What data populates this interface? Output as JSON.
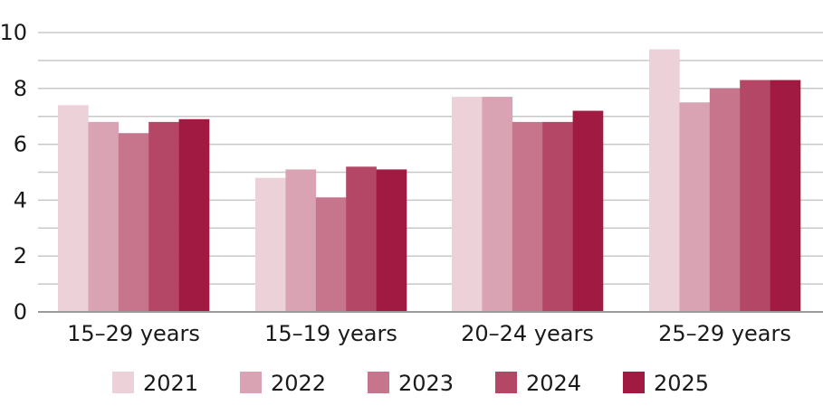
{
  "chart_data": {
    "type": "bar",
    "categories": [
      "15–29 years",
      "15–19 years",
      "20–24 years",
      "25–29 years"
    ],
    "series": [
      {
        "name": "2021",
        "color": "#edd1d9",
        "values": [
          7.4,
          4.8,
          7.7,
          9.4
        ]
      },
      {
        "name": "2022",
        "color": "#daa3b3",
        "values": [
          6.8,
          5.1,
          7.7,
          7.5
        ]
      },
      {
        "name": "2023",
        "color": "#c7748d",
        "values": [
          6.4,
          4.1,
          6.8,
          8.0
        ]
      },
      {
        "name": "2024",
        "color": "#b44766",
        "values": [
          6.8,
          5.2,
          6.8,
          8.3
        ]
      },
      {
        "name": "2025",
        "color": "#a11a41",
        "values": [
          6.9,
          5.1,
          7.2,
          8.3
        ]
      }
    ],
    "ylim": [
      0,
      10
    ],
    "yticks": [
      "0",
      "2",
      "4",
      "6",
      "8",
      "10"
    ],
    "grid": true,
    "legend_position": "bottom"
  }
}
